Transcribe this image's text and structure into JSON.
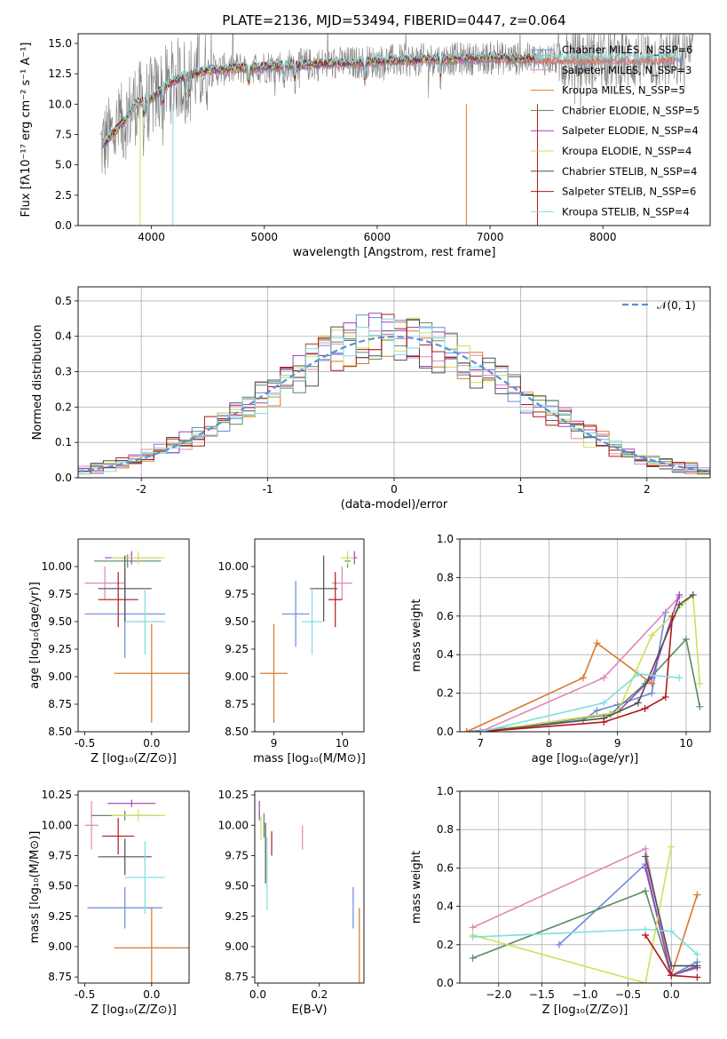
{
  "colors": {
    "chabrier_miles": "#6a89d8",
    "salpeter_miles": "#e088b8",
    "kroupa_miles": "#d9782a",
    "chabrier_elodie": "#5a8a62",
    "salpeter_elodie": "#a040c0",
    "kroupa_elodie": "#cde05a",
    "chabrier_stelib": "#505050",
    "salpeter_stelib": "#b01818",
    "kroupa_stelib": "#7fdde0",
    "data": "#808080",
    "normal": "#5b8fd8"
  },
  "chart_data": [
    {
      "id": "spectrum",
      "type": "line",
      "title": "PLATE=2136, MJD=53494, FIBERID=0447, z=0.064",
      "xlabel": "wavelength [Angstrom, rest frame]",
      "ylabel": "Flux [fλ10⁻¹⁷ erg cm⁻² s⁻¹ A⁻¹]",
      "xlim": [
        3350,
        8950
      ],
      "ylim": [
        0,
        15.8
      ],
      "xticks": [
        "4000",
        "5000",
        "6000",
        "7000",
        "8000"
      ],
      "yticks": [
        "0.0",
        "2.5",
        "5.0",
        "7.5",
        "10.0",
        "12.5",
        "15.0"
      ],
      "continuum": [
        [
          3550,
          6.5
        ],
        [
          3650,
          7.5
        ],
        [
          3750,
          8.5
        ],
        [
          3850,
          10.0
        ],
        [
          4000,
          10.5
        ],
        [
          4200,
          12.0
        ],
        [
          4500,
          12.8
        ],
        [
          5000,
          13.1
        ],
        [
          5500,
          13.3
        ],
        [
          6000,
          13.5
        ],
        [
          6500,
          13.7
        ],
        [
          7000,
          13.8
        ],
        [
          7400,
          13.7
        ]
      ],
      "legend": [
        "Chabrier MILES, N_SSP=6",
        "Salpeter MILES, N_SSP=3",
        "Kroupa MILES, N_SSP=5",
        "Chabrier ELODIE, N_SSP=5",
        "Salpeter ELODIE, N_SSP=4",
        "Kroupa ELODIE, N_SSP=4",
        "Chabrier STELIB, N_SSP=4",
        "Salpeter STELIB, N_SSP=6",
        "Kroupa STELIB, N_SSP=4"
      ],
      "legend_placement": "right"
    },
    {
      "id": "residuals",
      "type": "histogram",
      "xlabel": "(data-model)/error",
      "ylabel": "Normed distribution",
      "xlim": [
        -2.5,
        2.5
      ],
      "ylim": [
        0,
        0.54
      ],
      "xticks": [
        -2,
        -1,
        0,
        1,
        2
      ],
      "yticks": [
        "0.0",
        "0.1",
        "0.2",
        "0.3",
        "0.4",
        "0.5"
      ],
      "bin_width": 0.1,
      "grid": true,
      "legend": [
        "𝒩(0, 1)"
      ],
      "legend_placement": "top-right"
    },
    {
      "id": "age_vs_Z",
      "type": "scatter",
      "xlabel": "Z [log₁₀(Z/Z⊙)]",
      "ylabel": "age  [log₁₀(age/yr)]",
      "xlim": [
        -0.55,
        0.28
      ],
      "ylim": [
        8.5,
        10.25
      ],
      "xticks": [
        "-0.5",
        "0.0"
      ],
      "yticks": [
        "8.50",
        "8.75",
        "9.00",
        "9.25",
        "9.50",
        "9.75",
        "10.00"
      ],
      "points": [
        {
          "key": "chabrier_miles",
          "x": -0.2,
          "xerr": 0.3,
          "y": 9.57,
          "yerr": 0.4
        },
        {
          "key": "salpeter_miles",
          "x": -0.35,
          "xerr": 0.15,
          "y": 9.85,
          "yerr": 0.15
        },
        {
          "key": "kroupa_miles",
          "x": 0.0,
          "xerr": 0.28,
          "y": 9.03,
          "yerr": 0.45
        },
        {
          "key": "chabrier_elodie",
          "x": -0.18,
          "xerr": 0.25,
          "y": 10.05,
          "yerr": 0.06
        },
        {
          "key": "salpeter_elodie",
          "x": -0.15,
          "xerr": 0.2,
          "y": 10.08,
          "yerr": 0.06
        },
        {
          "key": "kroupa_elodie",
          "x": -0.1,
          "xerr": 0.2,
          "y": 10.08,
          "yerr": 0.06
        },
        {
          "key": "chabrier_stelib",
          "x": -0.2,
          "xerr": 0.2,
          "y": 9.8,
          "yerr": 0.3
        },
        {
          "key": "salpeter_stelib",
          "x": -0.25,
          "xerr": 0.15,
          "y": 9.7,
          "yerr": 0.25
        },
        {
          "key": "kroupa_stelib",
          "x": -0.05,
          "xerr": 0.15,
          "y": 9.5,
          "yerr": 0.3
        }
      ]
    },
    {
      "id": "age_vs_mass",
      "type": "scatter",
      "xlabel": "mass [log₁₀(M/M⊙)]",
      "ylabel": "",
      "xlim": [
        8.72,
        10.32
      ],
      "ylim": [
        8.5,
        10.25
      ],
      "xticks": [
        "9",
        "10"
      ],
      "yticks": [
        "8.50",
        "8.75",
        "9.00",
        "9.25",
        "9.50",
        "9.75",
        "10.00"
      ],
      "points": [
        {
          "key": "chabrier_miles",
          "x": 9.32,
          "xerr": 0.2,
          "y": 9.57,
          "yerr": 0.3
        },
        {
          "key": "salpeter_miles",
          "x": 10.0,
          "xerr": 0.15,
          "y": 9.85,
          "yerr": 0.15
        },
        {
          "key": "kroupa_miles",
          "x": 9.0,
          "xerr": 0.2,
          "y": 9.03,
          "yerr": 0.45
        },
        {
          "key": "chabrier_elodie",
          "x": 10.08,
          "xerr": 0.04,
          "y": 10.05,
          "yerr": 0.06
        },
        {
          "key": "salpeter_elodie",
          "x": 10.18,
          "xerr": 0.04,
          "y": 10.08,
          "yerr": 0.06
        },
        {
          "key": "kroupa_elodie",
          "x": 10.08,
          "xerr": 0.1,
          "y": 10.08,
          "yerr": 0.06
        },
        {
          "key": "chabrier_stelib",
          "x": 9.73,
          "xerr": 0.2,
          "y": 9.8,
          "yerr": 0.3
        },
        {
          "key": "salpeter_stelib",
          "x": 9.9,
          "xerr": 0.1,
          "y": 9.7,
          "yerr": 0.25
        },
        {
          "key": "kroupa_stelib",
          "x": 9.56,
          "xerr": 0.15,
          "y": 9.5,
          "yerr": 0.3
        }
      ]
    },
    {
      "id": "weight_vs_age",
      "type": "line",
      "xlabel": "age  [log₁₀(age/yr)]",
      "ylabel": "mass weight",
      "xlim": [
        6.7,
        10.35
      ],
      "ylim": [
        0,
        1.0
      ],
      "xticks": [
        "7",
        "8",
        "9",
        "10"
      ],
      "yticks": [
        "0.0",
        "0.2",
        "0.4",
        "0.6",
        "0.8",
        "1.0"
      ],
      "grid": true,
      "series": [
        {
          "key": "chabrier_miles",
          "x": [
            6.8,
            8.5,
            8.7,
            9.0,
            9.5,
            9.7
          ],
          "y": [
            0.0,
            0.06,
            0.11,
            0.14,
            0.2,
            0.62
          ]
        },
        {
          "key": "salpeter_miles",
          "x": [
            7.0,
            8.8,
            9.9
          ],
          "y": [
            0.0,
            0.28,
            0.7
          ]
        },
        {
          "key": "kroupa_miles",
          "x": [
            6.8,
            8.5,
            8.7,
            9.5
          ],
          "y": [
            0.0,
            0.28,
            0.46,
            0.25
          ]
        },
        {
          "key": "chabrier_elodie",
          "x": [
            7.0,
            8.9,
            9.4,
            10.0,
            10.2
          ],
          "y": [
            0.0,
            0.09,
            0.25,
            0.48,
            0.13
          ]
        },
        {
          "key": "salpeter_elodie",
          "x": [
            7.0,
            9.0,
            9.5,
            9.9
          ],
          "y": [
            0.0,
            0.1,
            0.28,
            0.71
          ]
        },
        {
          "key": "kroupa_elodie",
          "x": [
            7.0,
            9.0,
            9.5,
            10.1,
            10.2
          ],
          "y": [
            0.0,
            0.1,
            0.5,
            0.71,
            0.25
          ]
        },
        {
          "key": "chabrier_stelib",
          "x": [
            7.0,
            8.8,
            9.3,
            9.9,
            10.1
          ],
          "y": [
            0.0,
            0.07,
            0.15,
            0.66,
            0.71
          ]
        },
        {
          "key": "salpeter_stelib",
          "x": [
            7.0,
            8.8,
            9.4,
            9.7,
            9.8
          ],
          "y": [
            0.0,
            0.05,
            0.12,
            0.18,
            0.6
          ]
        },
        {
          "key": "kroupa_stelib",
          "x": [
            7.0,
            8.8,
            9.3,
            9.9
          ],
          "y": [
            0.0,
            0.15,
            0.3,
            0.28
          ]
        }
      ]
    },
    {
      "id": "mass_vs_Z",
      "type": "scatter",
      "xlabel": "Z [log₁₀(Z/Z⊙)]",
      "ylabel": "mass [log₁₀(M/M⊙)]",
      "xlim": [
        -0.55,
        0.28
      ],
      "ylim": [
        8.7,
        10.28
      ],
      "xticks": [
        "-0.5",
        "0.0"
      ],
      "yticks": [
        "8.75",
        "9.00",
        "9.25",
        "9.50",
        "9.75",
        "10.00",
        "10.25"
      ],
      "points": [
        {
          "key": "chabrier_miles",
          "x": -0.2,
          "xerr": 0.28,
          "y": 9.32,
          "yerr": 0.17
        },
        {
          "key": "salpeter_miles",
          "x": -0.45,
          "xerr": 0.05,
          "y": 10.0,
          "yerr": 0.2
        },
        {
          "key": "kroupa_miles",
          "x": 0.0,
          "xerr": 0.28,
          "y": 8.99,
          "yerr": 0.33
        },
        {
          "key": "chabrier_elodie",
          "x": -0.2,
          "xerr": 0.25,
          "y": 10.08,
          "yerr": 0.04
        },
        {
          "key": "salpeter_elodie",
          "x": -0.15,
          "xerr": 0.18,
          "y": 10.18,
          "yerr": 0.03
        },
        {
          "key": "kroupa_elodie",
          "x": -0.1,
          "xerr": 0.2,
          "y": 10.08,
          "yerr": 0.05
        },
        {
          "key": "chabrier_stelib",
          "x": -0.2,
          "xerr": 0.2,
          "y": 9.74,
          "yerr": 0.15
        },
        {
          "key": "salpeter_stelib",
          "x": -0.25,
          "xerr": 0.12,
          "y": 9.91,
          "yerr": 0.15
        },
        {
          "key": "kroupa_stelib",
          "x": -0.05,
          "xerr": 0.15,
          "y": 9.57,
          "yerr": 0.3
        }
      ]
    },
    {
      "id": "mass_vs_ebv",
      "type": "scatter",
      "xlabel": "E(B-V)",
      "ylabel": "",
      "xlim": [
        -0.01,
        0.345
      ],
      "ylim": [
        8.7,
        10.28
      ],
      "xticks": [
        "0.0",
        "0.2"
      ],
      "yticks": [
        "8.75",
        "9.00",
        "9.25",
        "9.50",
        "9.75",
        "10.00",
        "10.25"
      ],
      "points": [
        {
          "key": "chabrier_miles",
          "x": 0.31,
          "y": 9.32,
          "yerr": 0.17
        },
        {
          "key": "salpeter_miles",
          "x": 0.145,
          "y": 9.9,
          "yerr": 0.1
        },
        {
          "key": "kroupa_miles",
          "x": 0.33,
          "y": 8.99,
          "yerr": 0.33
        },
        {
          "key": "chabrier_elodie",
          "x": 0.02,
          "y": 10.0,
          "yerr": 0.1
        },
        {
          "key": "salpeter_elodie",
          "x": 0.005,
          "y": 10.12,
          "yerr": 0.08
        },
        {
          "key": "kroupa_elodie",
          "x": 0.01,
          "y": 9.98,
          "yerr": 0.1
        },
        {
          "key": "chabrier_stelib",
          "x": 0.025,
          "y": 9.77,
          "yerr": 0.25
        },
        {
          "key": "salpeter_stelib",
          "x": 0.045,
          "y": 9.85,
          "yerr": 0.1
        },
        {
          "key": "kroupa_stelib",
          "x": 0.03,
          "y": 9.6,
          "yerr": 0.3
        }
      ]
    },
    {
      "id": "weight_vs_Z",
      "type": "line",
      "xlabel": "Z [log₁₀(Z/Z⊙)]",
      "ylabel": "mass weight",
      "xlim": [
        -2.45,
        0.45
      ],
      "ylim": [
        0,
        1.0
      ],
      "xticks": [
        "−2.0",
        "−1.5",
        "−1.0",
        "−0.5",
        "0.0"
      ],
      "yticks": [
        "0.0",
        "0.2",
        "0.4",
        "0.6",
        "0.8",
        "1.0"
      ],
      "grid": true,
      "series": [
        {
          "key": "chabrier_miles",
          "x": [
            -1.3,
            -0.3,
            0.0,
            0.3
          ],
          "y": [
            0.2,
            0.62,
            0.04,
            0.11
          ]
        },
        {
          "key": "salpeter_miles",
          "x": [
            -2.3,
            -0.3,
            0.0
          ],
          "y": [
            0.29,
            0.7,
            0.04
          ]
        },
        {
          "key": "kroupa_miles",
          "x": [
            -0.3,
            0.0,
            0.3
          ],
          "y": [
            0.25,
            0.04,
            0.46
          ]
        },
        {
          "key": "chabrier_elodie",
          "x": [
            -2.3,
            -0.3,
            0.0,
            0.3
          ],
          "y": [
            0.13,
            0.48,
            0.04,
            0.09
          ]
        },
        {
          "key": "salpeter_elodie",
          "x": [
            -0.3,
            0.0,
            0.3
          ],
          "y": [
            0.6,
            0.04,
            0.08
          ]
        },
        {
          "key": "kroupa_elodie",
          "x": [
            -2.3,
            -0.3,
            0.0
          ],
          "y": [
            0.25,
            0.0,
            0.71
          ]
        },
        {
          "key": "chabrier_stelib",
          "x": [
            -0.3,
            0.0,
            0.3
          ],
          "y": [
            0.66,
            0.09,
            0.09
          ]
        },
        {
          "key": "salpeter_stelib",
          "x": [
            -0.3,
            0.0,
            0.3
          ],
          "y": [
            0.25,
            0.04,
            0.03
          ]
        },
        {
          "key": "kroupa_stelib",
          "x": [
            -2.3,
            -0.3,
            0.0,
            0.3
          ],
          "y": [
            0.24,
            0.28,
            0.27,
            0.15
          ]
        }
      ]
    }
  ]
}
